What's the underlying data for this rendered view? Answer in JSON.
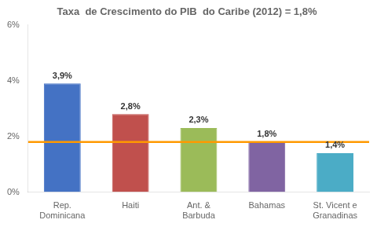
{
  "chart_data": {
    "type": "bar",
    "title": "Taxa  de Crescimento do PIB  do Caribe (2012) = 1,8%",
    "categories": [
      "Rep.\nDominicana",
      "Haiti",
      "Ant. &\nBarbuda",
      "Bahamas",
      "St. Vicent e\nGranadinas"
    ],
    "values": [
      3.9,
      2.8,
      2.3,
      1.8,
      1.4
    ],
    "value_labels": [
      "3,9%",
      "2,8%",
      "2,3%",
      "1,8%",
      "1,4%"
    ],
    "data_labels": true,
    "colors": [
      "#4472C4",
      "#C0504D",
      "#9BBB59",
      "#8064A2",
      "#4BACC6"
    ],
    "reference_line": {
      "value": 1.8,
      "color": "#FF9900"
    },
    "ylim": [
      0,
      6
    ],
    "yticks": [
      {
        "value": 0,
        "label": "0%"
      },
      {
        "value": 2,
        "label": "2%"
      },
      {
        "value": 4,
        "label": "4%"
      },
      {
        "value": 6,
        "label": "6%"
      }
    ],
    "grid": false
  }
}
